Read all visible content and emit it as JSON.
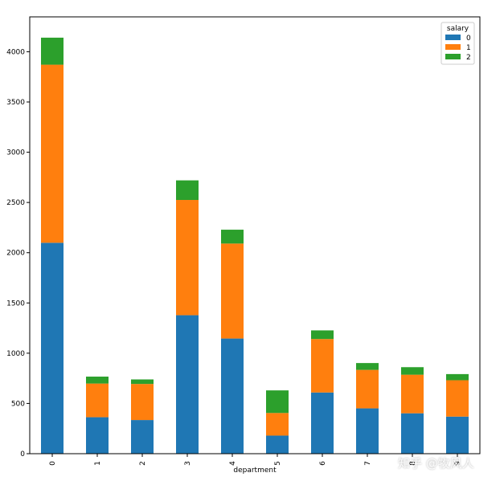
{
  "chart_data": {
    "type": "bar",
    "stacked": true,
    "categories": [
      "0",
      "1",
      "2",
      "3",
      "4",
      "5",
      "6",
      "7",
      "8",
      "9"
    ],
    "series": [
      {
        "name": "0",
        "color": "#1f77b4",
        "values": [
          2099,
          363,
          335,
          1378,
          1146,
          180,
          609,
          451,
          402,
          369
        ]
      },
      {
        "name": "1",
        "color": "#ff7f0e",
        "values": [
          1772,
          335,
          359,
          1147,
          945,
          225,
          532,
          383,
          384,
          362
        ]
      },
      {
        "name": "2",
        "color": "#2ca02c",
        "values": [
          269,
          69,
          45,
          195,
          138,
          225,
          86,
          68,
          75,
          61
        ]
      }
    ],
    "xlabel": "department",
    "ylabel": "",
    "ylim": [
      0,
      4347
    ],
    "yticks": [
      0,
      500,
      1000,
      1500,
      2000,
      2500,
      3000,
      3500,
      4000
    ],
    "legend": {
      "title": "salary",
      "placement": "top-right"
    },
    "grid": false
  },
  "watermark": "知乎 @牧风人"
}
